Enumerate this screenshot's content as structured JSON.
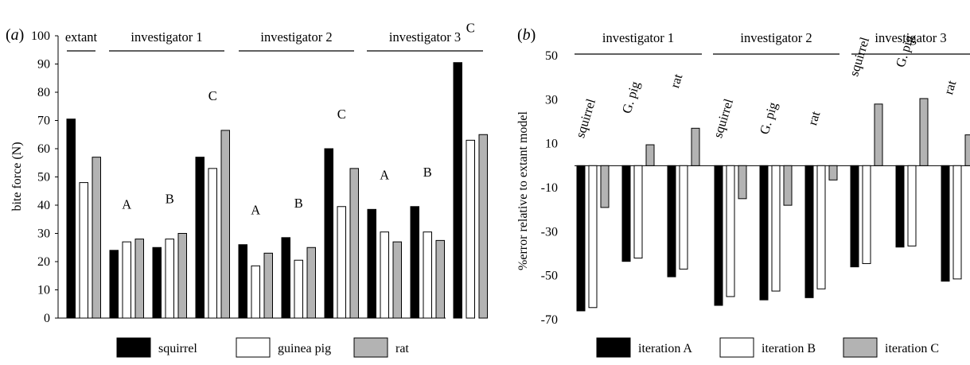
{
  "chart_data": [
    {
      "panel": "(a)",
      "panel_prefix": "(",
      "panel_letter": "a",
      "panel_suffix": ")",
      "type": "bar",
      "ylabel": "bite force (N)",
      "ylim": [
        0,
        100
      ],
      "yticks": [
        "0",
        "10",
        "20",
        "30",
        "40",
        "50",
        "60",
        "70",
        "80",
        "90",
        "100"
      ],
      "groups": [
        "extant",
        "investigator 1",
        "investigator 2",
        "investigator 3"
      ],
      "clusters": [
        {
          "group": 0,
          "label": "",
          "values": [
            70.5,
            48,
            57
          ]
        },
        {
          "group": 1,
          "label": "A",
          "values": [
            24,
            27,
            28
          ]
        },
        {
          "group": 1,
          "label": "B",
          "values": [
            25,
            28,
            30
          ]
        },
        {
          "group": 1,
          "label": "C",
          "values": [
            57,
            53,
            66.5
          ]
        },
        {
          "group": 2,
          "label": "A",
          "values": [
            26,
            18.5,
            23
          ]
        },
        {
          "group": 2,
          "label": "B",
          "values": [
            28.5,
            20.5,
            25
          ]
        },
        {
          "group": 2,
          "label": "C",
          "values": [
            60,
            39.5,
            53
          ]
        },
        {
          "group": 3,
          "label": "A",
          "values": [
            38.5,
            30.5,
            27
          ]
        },
        {
          "group": 3,
          "label": "B",
          "values": [
            39.5,
            30.5,
            27.5
          ]
        },
        {
          "group": 3,
          "label": "C",
          "values": [
            90.5,
            63,
            65
          ]
        }
      ],
      "legend": [
        "squirrel",
        "guinea pig",
        "rat"
      ],
      "colors": [
        "#000000",
        "#ffffff",
        "#b3b3b3"
      ]
    },
    {
      "panel": "(b)",
      "panel_prefix": "(",
      "panel_letter": "b",
      "panel_suffix": ")",
      "type": "bar",
      "ylabel": "%error relative to extant model",
      "ylim": [
        -70,
        50
      ],
      "yticks": [
        "-70",
        "-50",
        "-30",
        "-10",
        "10",
        "30",
        "50"
      ],
      "groups": [
        "investigator 1",
        "investigator 2",
        "investigator 3"
      ],
      "clusters": [
        {
          "group": 0,
          "label": "squirrel",
          "values": [
            -66,
            -64.5,
            -19
          ]
        },
        {
          "group": 0,
          "label": "G. pig",
          "values": [
            -43.5,
            -42,
            9.5
          ]
        },
        {
          "group": 0,
          "label": "rat",
          "values": [
            -50.5,
            -47,
            17
          ]
        },
        {
          "group": 1,
          "label": "squirrel",
          "values": [
            -63.5,
            -59.5,
            -15
          ]
        },
        {
          "group": 1,
          "label": "G. pig",
          "values": [
            -61,
            -57,
            -18
          ]
        },
        {
          "group": 1,
          "label": "rat",
          "values": [
            -60,
            -56,
            -6.5
          ]
        },
        {
          "group": 2,
          "label": "squirrel",
          "values": [
            -46,
            -44.5,
            28
          ]
        },
        {
          "group": 2,
          "label": "G. pig",
          "values": [
            -37,
            -36.5,
            30.5
          ]
        },
        {
          "group": 2,
          "label": "rat",
          "values": [
            -52.5,
            -51.5,
            14
          ]
        }
      ],
      "legend": [
        "iteration A",
        "iteration B",
        "iteration C"
      ],
      "colors": [
        "#000000",
        "#ffffff",
        "#b3b3b3"
      ]
    }
  ]
}
